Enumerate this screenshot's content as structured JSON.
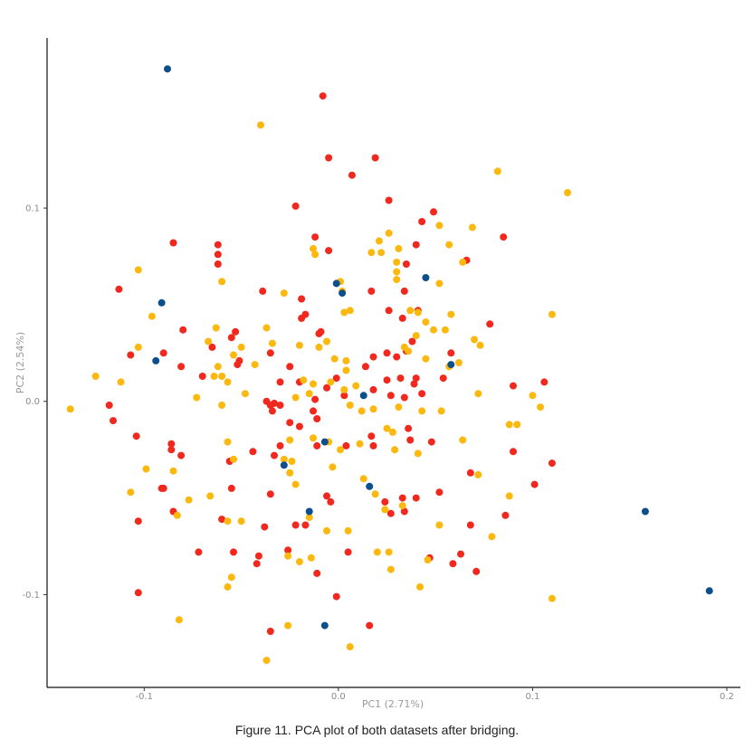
{
  "caption": "Figure 11. PCA plot of both datasets after bridging.",
  "chart_data": {
    "type": "scatter",
    "title": "",
    "xlabel": "PC1 (2.71%)",
    "ylabel": "PC2 (2.54%)",
    "xlim": [
      -0.15,
      0.207
    ],
    "ylim": [
      -0.148,
      0.188
    ],
    "x_ticks": [
      -0.1,
      0.0,
      0.1,
      0.2
    ],
    "x_tick_labels": [
      "-0.1",
      "0.0",
      "0.1",
      "0.2"
    ],
    "y_ticks": [
      -0.1,
      0.0,
      0.1
    ],
    "y_tick_labels": [
      "-0.1",
      "0.0",
      "0.1"
    ],
    "grid": false,
    "legend": "none",
    "colors": {
      "red": "#f0281e",
      "yellow": "#fbb80f",
      "blue": "#0d4f8b"
    },
    "series": [
      {
        "color": "#f0281e",
        "points": [
          [
            -0.008,
            0.158
          ],
          [
            -0.005,
            0.126
          ],
          [
            0.007,
            0.117
          ],
          [
            0.019,
            0.126
          ],
          [
            -0.022,
            0.101
          ],
          [
            0.026,
            0.104
          ],
          [
            -0.113,
            0.058
          ],
          [
            -0.085,
            0.082
          ],
          [
            -0.062,
            0.081
          ],
          [
            -0.062,
            0.076
          ],
          [
            -0.062,
            0.071
          ],
          [
            -0.039,
            0.057
          ],
          [
            -0.012,
            0.085
          ],
          [
            -0.005,
            0.078
          ],
          [
            0.04,
            0.081
          ],
          [
            0.049,
            0.098
          ],
          [
            0.043,
            0.093
          ],
          [
            0.066,
            0.073
          ],
          [
            0.085,
            0.085
          ],
          [
            0.035,
            0.071
          ],
          [
            0.034,
            0.057
          ],
          [
            0.017,
            0.057
          ],
          [
            -0.019,
            0.053
          ],
          [
            -0.017,
            0.045
          ],
          [
            -0.019,
            0.043
          ],
          [
            -0.055,
            0.033
          ],
          [
            -0.053,
            0.036
          ],
          [
            -0.08,
            0.037
          ],
          [
            -0.107,
            0.024
          ],
          [
            -0.09,
            0.025
          ],
          [
            -0.065,
            0.028
          ],
          [
            -0.051,
            0.021
          ],
          [
            -0.035,
            0.025
          ],
          [
            -0.01,
            0.035
          ],
          [
            -0.009,
            0.036
          ],
          [
            0.026,
            0.047
          ],
          [
            0.033,
            0.043
          ],
          [
            0.041,
            0.047
          ],
          [
            0.035,
            0.026
          ],
          [
            0.025,
            0.025
          ],
          [
            0.018,
            0.023
          ],
          [
            0.014,
            0.018
          ],
          [
            0.03,
            0.023
          ],
          [
            0.058,
            0.025
          ],
          [
            0.078,
            0.04
          ],
          [
            0.038,
            0.031
          ],
          [
            -0.081,
            0.018
          ],
          [
            -0.07,
            0.013
          ],
          [
            -0.052,
            0.019
          ],
          [
            -0.03,
            0.01
          ],
          [
            -0.025,
            0.018
          ],
          [
            -0.02,
            0.01
          ],
          [
            -0.006,
            0.007
          ],
          [
            -0.001,
            0.012
          ],
          [
            0.025,
            0.011
          ],
          [
            0.032,
            0.012
          ],
          [
            0.04,
            0.012
          ],
          [
            0.054,
            0.012
          ],
          [
            0.09,
            0.008
          ],
          [
            0.106,
            0.01
          ],
          [
            -0.118,
            -0.002
          ],
          [
            -0.116,
            -0.01
          ],
          [
            -0.104,
            -0.018
          ],
          [
            -0.086,
            -0.022
          ],
          [
            -0.086,
            -0.025
          ],
          [
            -0.081,
            -0.028
          ],
          [
            -0.037,
            0.0
          ],
          [
            -0.035,
            -0.002
          ],
          [
            -0.033,
            -0.001
          ],
          [
            -0.03,
            -0.002
          ],
          [
            -0.034,
            -0.005
          ],
          [
            -0.013,
            -0.005
          ],
          [
            -0.011,
            -0.009
          ],
          [
            -0.012,
            0.001
          ],
          [
            0.003,
            0.003
          ],
          [
            0.018,
            0.006
          ],
          [
            0.027,
            0.003
          ],
          [
            0.034,
            0.002
          ],
          [
            0.043,
            0.004
          ],
          [
            0.039,
            0.009
          ],
          [
            -0.044,
            -0.026
          ],
          [
            -0.03,
            -0.023
          ],
          [
            -0.033,
            -0.028
          ],
          [
            -0.025,
            -0.011
          ],
          [
            -0.02,
            -0.013
          ],
          [
            -0.011,
            -0.023
          ],
          [
            0.004,
            -0.023
          ],
          [
            0.017,
            -0.018
          ],
          [
            0.018,
            -0.023
          ],
          [
            0.037,
            -0.02
          ],
          [
            0.036,
            -0.014
          ],
          [
            0.048,
            -0.021
          ],
          [
            0.068,
            -0.037
          ],
          [
            0.09,
            -0.026
          ],
          [
            0.11,
            -0.032
          ],
          [
            0.101,
            -0.043
          ],
          [
            -0.09,
            -0.045
          ],
          [
            -0.091,
            -0.045
          ],
          [
            -0.085,
            -0.057
          ],
          [
            -0.103,
            -0.062
          ],
          [
            -0.06,
            -0.061
          ],
          [
            -0.055,
            -0.045
          ],
          [
            -0.056,
            -0.031
          ],
          [
            -0.035,
            -0.048
          ],
          [
            -0.038,
            -0.065
          ],
          [
            -0.022,
            -0.064
          ],
          [
            -0.017,
            -0.064
          ],
          [
            -0.006,
            -0.049
          ],
          [
            -0.004,
            -0.052
          ],
          [
            0.024,
            -0.052
          ],
          [
            0.033,
            -0.05
          ],
          [
            0.04,
            -0.05
          ],
          [
            0.052,
            -0.047
          ],
          [
            0.034,
            -0.057
          ],
          [
            0.027,
            -0.058
          ],
          [
            0.068,
            -0.064
          ],
          [
            0.086,
            -0.059
          ],
          [
            -0.072,
            -0.078
          ],
          [
            -0.054,
            -0.078
          ],
          [
            -0.041,
            -0.08
          ],
          [
            -0.042,
            -0.084
          ],
          [
            -0.026,
            -0.077
          ],
          [
            -0.011,
            -0.089
          ],
          [
            0.005,
            -0.078
          ],
          [
            0.047,
            -0.081
          ],
          [
            0.059,
            -0.084
          ],
          [
            0.063,
            -0.079
          ],
          [
            0.071,
            -0.088
          ],
          [
            -0.103,
            -0.099
          ],
          [
            -0.035,
            -0.119
          ],
          [
            -0.001,
            -0.101
          ],
          [
            0.016,
            -0.116
          ]
        ]
      },
      {
        "color": "#fbb80f",
        "points": [
          [
            -0.04,
            0.143
          ],
          [
            0.082,
            0.119
          ],
          [
            0.118,
            0.108
          ],
          [
            0.026,
            0.087
          ],
          [
            0.052,
            0.091
          ],
          [
            0.069,
            0.09
          ],
          [
            0.021,
            0.083
          ],
          [
            0.017,
            0.077
          ],
          [
            0.022,
            0.077
          ],
          [
            0.031,
            0.079
          ],
          [
            0.03,
            0.072
          ],
          [
            0.057,
            0.081
          ],
          [
            0.064,
            0.072
          ],
          [
            0.052,
            0.061
          ],
          [
            0.03,
            0.067
          ],
          [
            0.03,
            0.063
          ],
          [
            -0.103,
            0.068
          ],
          [
            -0.096,
            0.044
          ],
          [
            -0.06,
            0.062
          ],
          [
            -0.028,
            0.056
          ],
          [
            -0.013,
            0.079
          ],
          [
            -0.012,
            0.076
          ],
          [
            0.002,
            0.057
          ],
          [
            0.001,
            0.062
          ],
          [
            0.003,
            0.046
          ],
          [
            0.006,
            0.047
          ],
          [
            0.037,
            0.047
          ],
          [
            0.041,
            0.046
          ],
          [
            0.045,
            0.041
          ],
          [
            0.049,
            0.037
          ],
          [
            0.04,
            0.034
          ],
          [
            0.055,
            0.037
          ],
          [
            0.058,
            0.045
          ],
          [
            0.07,
            0.032
          ],
          [
            0.073,
            0.029
          ],
          [
            0.11,
            0.045
          ],
          [
            -0.125,
            0.013
          ],
          [
            -0.112,
            0.01
          ],
          [
            -0.103,
            0.028
          ],
          [
            -0.063,
            0.038
          ],
          [
            -0.05,
            0.028
          ],
          [
            -0.054,
            0.024
          ],
          [
            -0.067,
            0.031
          ],
          [
            -0.062,
            0.018
          ],
          [
            -0.043,
            0.019
          ],
          [
            -0.037,
            0.038
          ],
          [
            -0.034,
            0.03
          ],
          [
            -0.02,
            0.029
          ],
          [
            -0.01,
            0.028
          ],
          [
            -0.006,
            0.031
          ],
          [
            -0.002,
            0.022
          ],
          [
            0.004,
            0.021
          ],
          [
            0.004,
            0.016
          ],
          [
            0.034,
            0.028
          ],
          [
            0.036,
            0.026
          ],
          [
            0.045,
            0.022
          ],
          [
            0.057,
            0.018
          ],
          [
            0.062,
            0.02
          ],
          [
            -0.138,
            -0.004
          ],
          [
            -0.099,
            -0.035
          ],
          [
            -0.085,
            -0.036
          ],
          [
            -0.083,
            -0.059
          ],
          [
            -0.073,
            0.002
          ],
          [
            -0.06,
            0.013
          ],
          [
            -0.064,
            0.013
          ],
          [
            -0.057,
            0.01
          ],
          [
            -0.06,
            -0.002
          ],
          [
            -0.048,
            0.004
          ],
          [
            -0.022,
            0.002
          ],
          [
            -0.018,
            0.011
          ],
          [
            -0.013,
            0.009
          ],
          [
            -0.015,
            0.004
          ],
          [
            -0.004,
            0.01
          ],
          [
            0.003,
            0.006
          ],
          [
            0.009,
            0.008
          ],
          [
            0.006,
            -0.002
          ],
          [
            0.012,
            -0.005
          ],
          [
            0.018,
            -0.004
          ],
          [
            0.025,
            -0.014
          ],
          [
            0.028,
            -0.016
          ],
          [
            0.031,
            -0.003
          ],
          [
            0.043,
            -0.005
          ],
          [
            0.053,
            -0.005
          ],
          [
            0.072,
            0.004
          ],
          [
            0.088,
            -0.012
          ],
          [
            0.092,
            -0.012
          ],
          [
            0.1,
            0.003
          ],
          [
            0.104,
            -0.003
          ],
          [
            -0.107,
            -0.047
          ],
          [
            -0.077,
            -0.051
          ],
          [
            -0.066,
            -0.049
          ],
          [
            -0.057,
            -0.021
          ],
          [
            -0.054,
            -0.03
          ],
          [
            -0.025,
            -0.02
          ],
          [
            -0.024,
            -0.031
          ],
          [
            -0.028,
            -0.03
          ],
          [
            -0.025,
            -0.037
          ],
          [
            -0.022,
            -0.043
          ],
          [
            -0.013,
            -0.019
          ],
          [
            -0.003,
            -0.034
          ],
          [
            -0.005,
            -0.021
          ],
          [
            0.001,
            -0.025
          ],
          [
            0.011,
            -0.022
          ],
          [
            0.013,
            -0.04
          ],
          [
            0.029,
            -0.025
          ],
          [
            0.041,
            -0.027
          ],
          [
            0.064,
            -0.02
          ],
          [
            0.072,
            -0.038
          ],
          [
            0.088,
            -0.049
          ],
          [
            -0.082,
            -0.113
          ],
          [
            -0.057,
            -0.062
          ],
          [
            -0.05,
            -0.062
          ],
          [
            -0.057,
            -0.096
          ],
          [
            -0.055,
            -0.091
          ],
          [
            -0.037,
            -0.134
          ],
          [
            -0.026,
            -0.116
          ],
          [
            -0.026,
            -0.08
          ],
          [
            -0.02,
            -0.083
          ],
          [
            -0.014,
            -0.081
          ],
          [
            -0.015,
            -0.06
          ],
          [
            -0.006,
            -0.067
          ],
          [
            0.005,
            -0.067
          ],
          [
            0.02,
            -0.078
          ],
          [
            0.026,
            -0.078
          ],
          [
            0.027,
            -0.087
          ],
          [
            0.019,
            -0.048
          ],
          [
            0.024,
            -0.056
          ],
          [
            0.033,
            -0.054
          ],
          [
            0.052,
            -0.064
          ],
          [
            0.046,
            -0.082
          ],
          [
            0.042,
            -0.096
          ],
          [
            0.079,
            -0.07
          ],
          [
            0.11,
            -0.102
          ],
          [
            0.006,
            -0.127
          ]
        ]
      },
      {
        "color": "#0d4f8b",
        "points": [
          [
            -0.088,
            0.172
          ],
          [
            -0.091,
            0.051
          ],
          [
            -0.094,
            0.021
          ],
          [
            -0.001,
            0.061
          ],
          [
            0.002,
            0.056
          ],
          [
            0.045,
            0.064
          ],
          [
            0.058,
            0.019
          ],
          [
            0.013,
            0.003
          ],
          [
            -0.028,
            -0.033
          ],
          [
            -0.007,
            -0.021
          ],
          [
            -0.015,
            -0.057
          ],
          [
            0.016,
            -0.044
          ],
          [
            0.158,
            -0.057
          ],
          [
            0.191,
            -0.098
          ],
          [
            -0.007,
            -0.116
          ]
        ]
      }
    ]
  }
}
